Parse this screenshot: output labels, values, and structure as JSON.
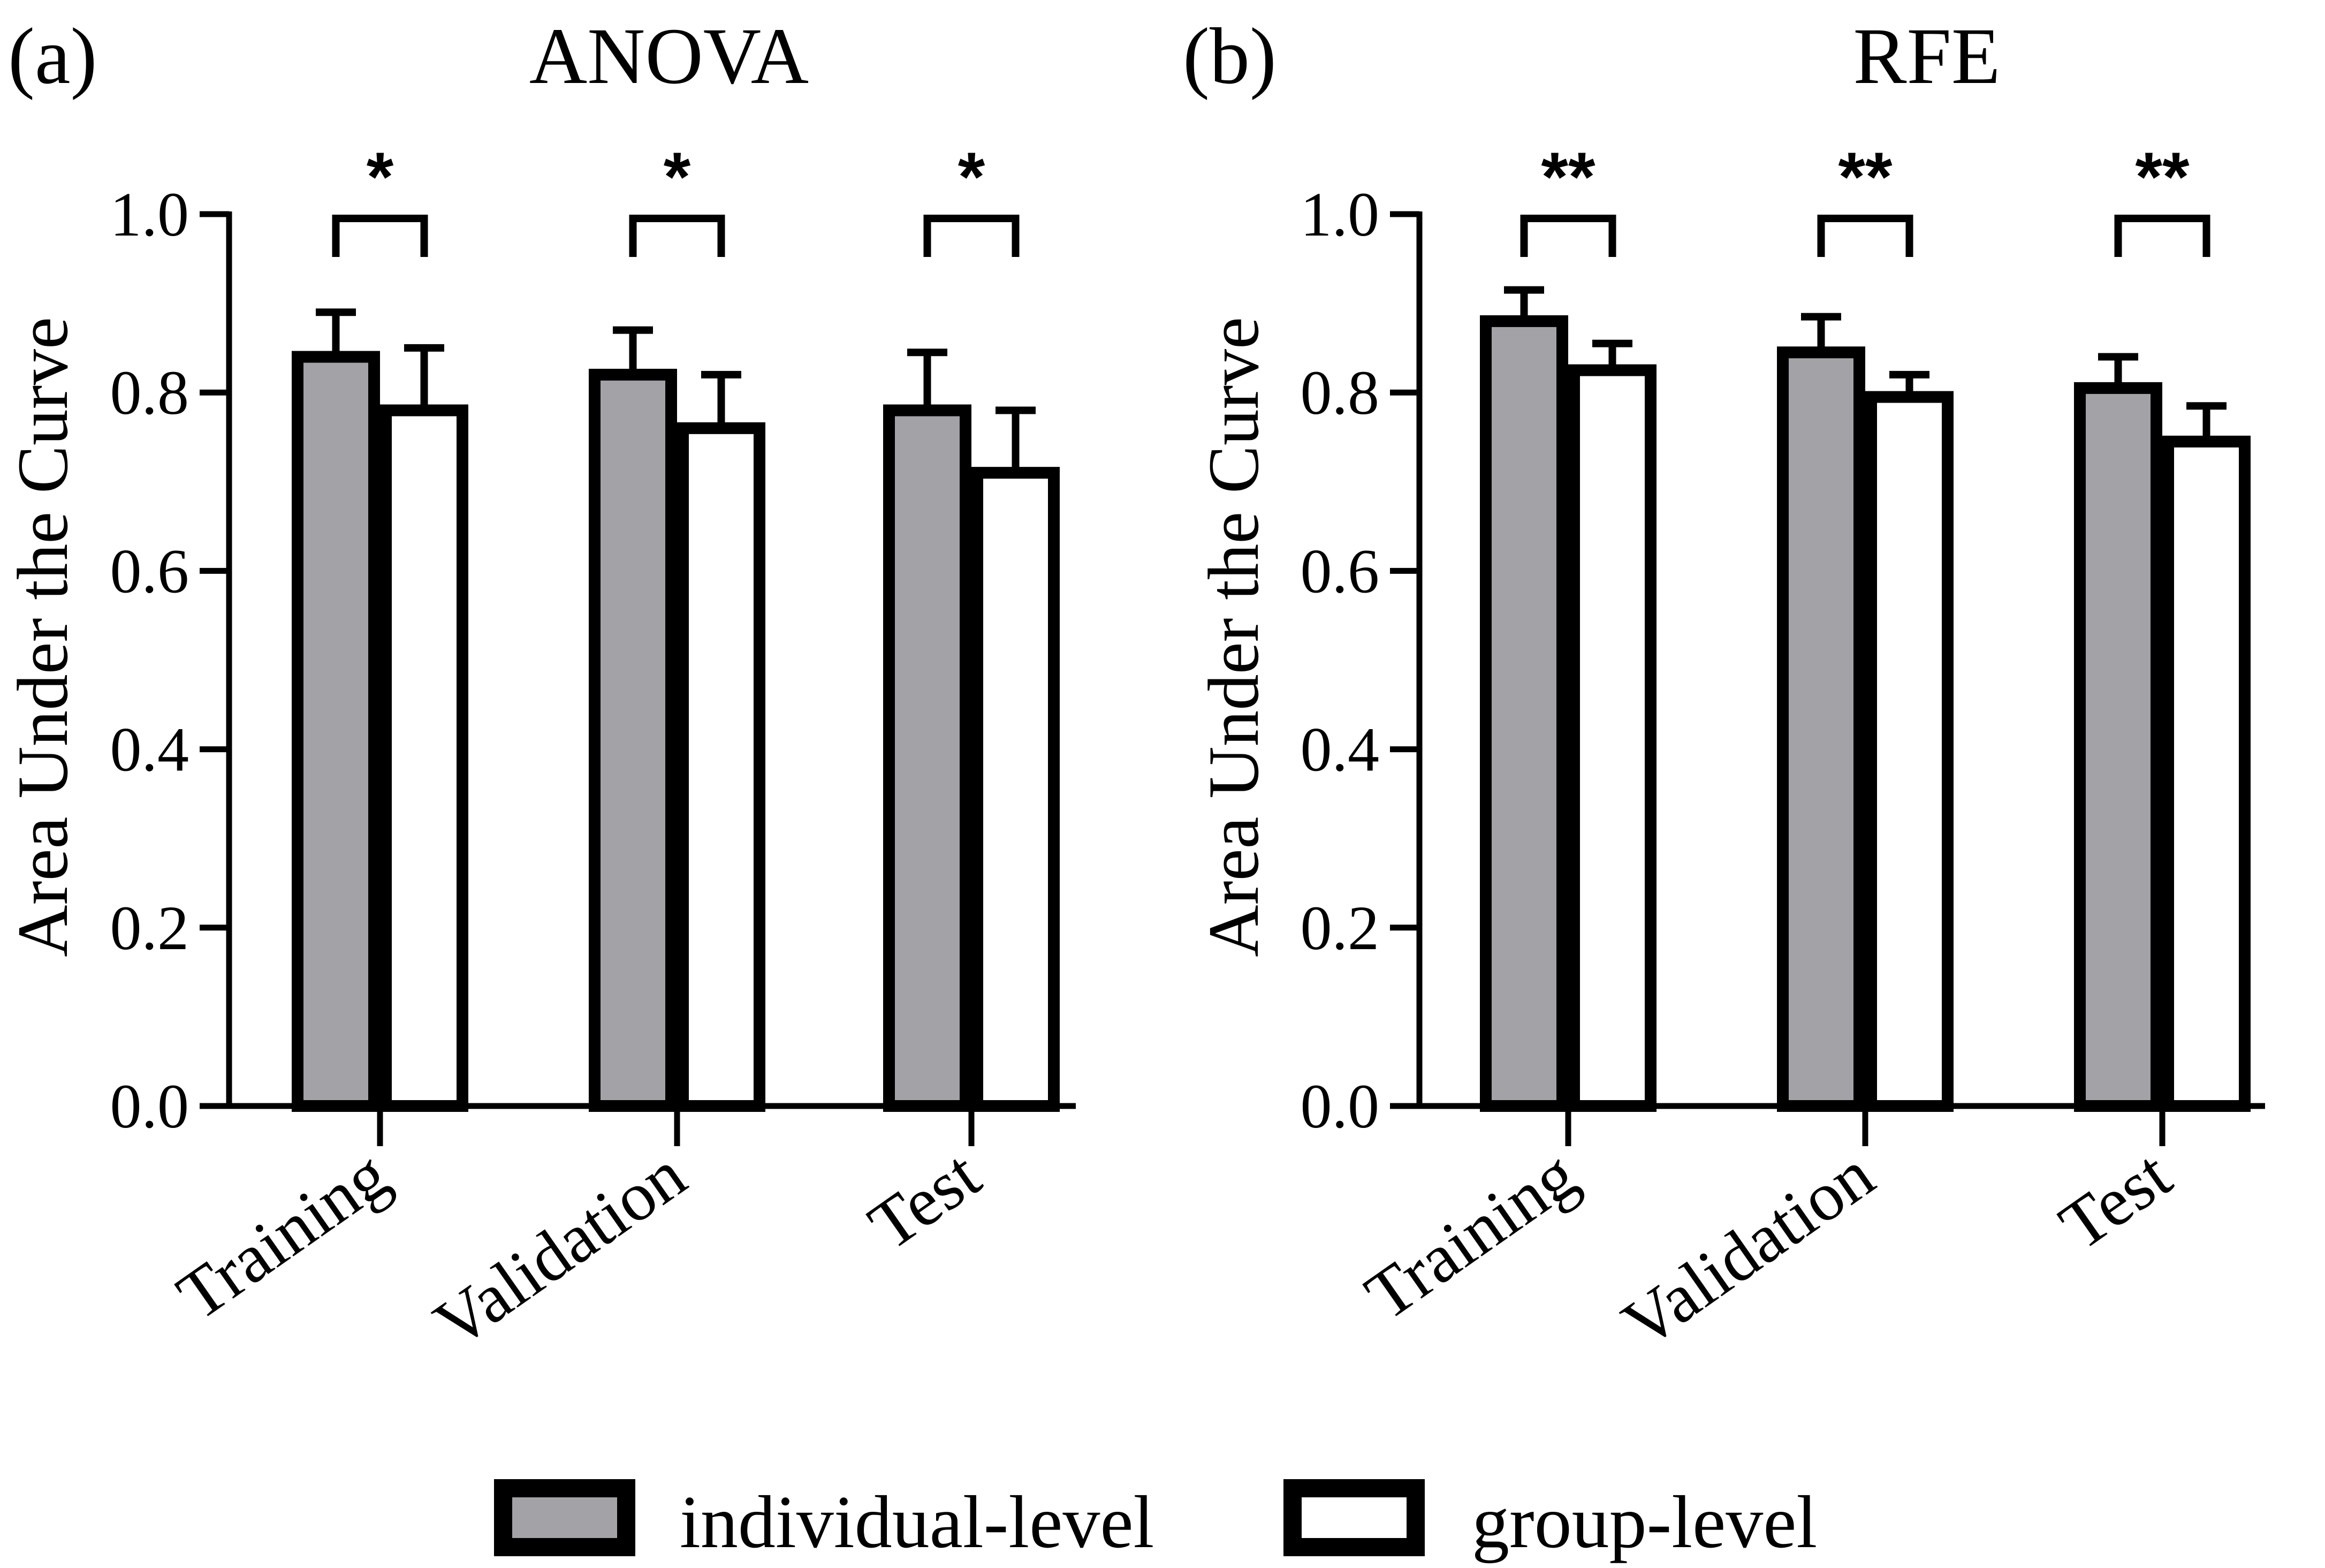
{
  "chart_data": [
    {
      "type": "bar",
      "panel_label": "(a)",
      "title": "ANOVA",
      "xlabel": "",
      "ylabel": "Area Under the Curve",
      "ylim": [
        0,
        1.0
      ],
      "yticks": [
        "0.0",
        "0.2",
        "0.4",
        "0.6",
        "0.8",
        "1.0"
      ],
      "categories": [
        "Training",
        "Validation",
        "Test"
      ],
      "series": [
        {
          "name": "individual-level",
          "values": [
            0.84,
            0.82,
            0.78
          ],
          "errors": [
            0.05,
            0.05,
            0.065
          ]
        },
        {
          "name": "group-level",
          "values": [
            0.78,
            0.76,
            0.71
          ],
          "errors": [
            0.07,
            0.06,
            0.07
          ]
        }
      ],
      "significance": [
        "*",
        "*",
        "*"
      ]
    },
    {
      "type": "bar",
      "panel_label": "(b)",
      "title": "RFE",
      "xlabel": "",
      "ylabel": "Area Under the Curve",
      "ylim": [
        0,
        1.0
      ],
      "yticks": [
        "0.0",
        "0.2",
        "0.4",
        "0.6",
        "0.8",
        "1.0"
      ],
      "categories": [
        "Training",
        "Validation",
        "Test"
      ],
      "series": [
        {
          "name": "individual-level",
          "values": [
            0.88,
            0.845,
            0.805
          ],
          "errors": [
            0.035,
            0.04,
            0.035
          ]
        },
        {
          "name": "group-level",
          "values": [
            0.825,
            0.795,
            0.745
          ],
          "errors": [
            0.03,
            0.025,
            0.04
          ]
        }
      ],
      "significance": [
        "**",
        "**",
        "**"
      ]
    }
  ],
  "legend": {
    "items": [
      {
        "label": "individual-level",
        "fill": "#a2a2a7"
      },
      {
        "label": "group-level",
        "fill": "#ffffff"
      }
    ]
  },
  "colors": {
    "individual": "#a2a2a7",
    "group": "#ffffff",
    "stroke": "#000000"
  }
}
